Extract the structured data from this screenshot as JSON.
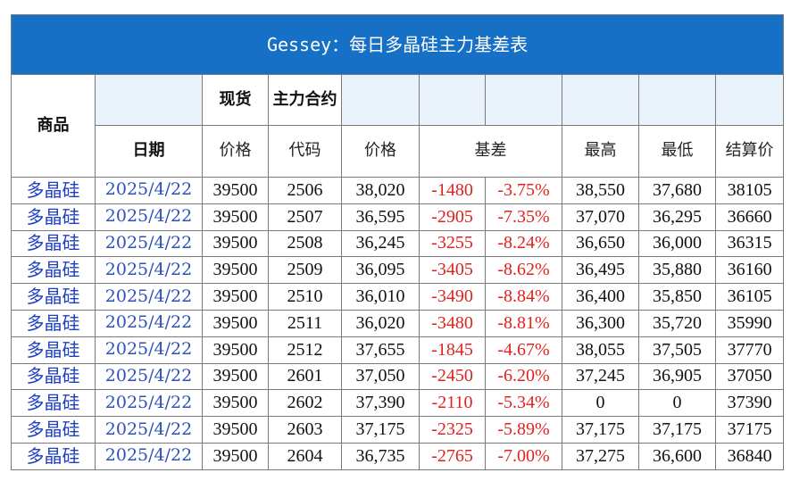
{
  "title": "Gessey：每日多晶硅主力基差表",
  "headers": {
    "product": "商品",
    "spot": "现货",
    "contract": "主力合约",
    "date": "日期",
    "spot_price": "价格",
    "code": "代码",
    "price": "价格",
    "basis": "基差",
    "high": "最高",
    "low": "最低",
    "settle": "结算价"
  },
  "rows": [
    {
      "product": "多晶硅",
      "date": "2025/4/22",
      "spot_price": "39500",
      "code": "2506",
      "price": "38,020",
      "basis": "-1480",
      "basis_pct": "-3.75%",
      "high": "38,550",
      "low": "37,680",
      "settle": "38105"
    },
    {
      "product": "多晶硅",
      "date": "2025/4/22",
      "spot_price": "39500",
      "code": "2507",
      "price": "36,595",
      "basis": "-2905",
      "basis_pct": "-7.35%",
      "high": "37,070",
      "low": "36,295",
      "settle": "36660"
    },
    {
      "product": "多晶硅",
      "date": "2025/4/22",
      "spot_price": "39500",
      "code": "2508",
      "price": "36,245",
      "basis": "-3255",
      "basis_pct": "-8.24%",
      "high": "36,650",
      "low": "36,000",
      "settle": "36315"
    },
    {
      "product": "多晶硅",
      "date": "2025/4/22",
      "spot_price": "39500",
      "code": "2509",
      "price": "36,095",
      "basis": "-3405",
      "basis_pct": "-8.62%",
      "high": "36,495",
      "low": "35,880",
      "settle": "36160"
    },
    {
      "product": "多晶硅",
      "date": "2025/4/22",
      "spot_price": "39500",
      "code": "2510",
      "price": "36,010",
      "basis": "-3490",
      "basis_pct": "-8.84%",
      "high": "36,400",
      "low": "35,850",
      "settle": "36105"
    },
    {
      "product": "多晶硅",
      "date": "2025/4/22",
      "spot_price": "39500",
      "code": "2511",
      "price": "36,020",
      "basis": "-3480",
      "basis_pct": "-8.81%",
      "high": "36,300",
      "low": "35,720",
      "settle": "35990"
    },
    {
      "product": "多晶硅",
      "date": "2025/4/22",
      "spot_price": "39500",
      "code": "2512",
      "price": "37,655",
      "basis": "-1845",
      "basis_pct": "-4.67%",
      "high": "38,055",
      "low": "37,505",
      "settle": "37770"
    },
    {
      "product": "多晶硅",
      "date": "2025/4/22",
      "spot_price": "39500",
      "code": "2601",
      "price": "37,050",
      "basis": "-2450",
      "basis_pct": "-6.20%",
      "high": "37,245",
      "low": "36,905",
      "settle": "37050"
    },
    {
      "product": "多晶硅",
      "date": "2025/4/22",
      "spot_price": "39500",
      "code": "2602",
      "price": "37,390",
      "basis": "-2110",
      "basis_pct": "-5.34%",
      "high": "0",
      "low": "0",
      "settle": "37390"
    },
    {
      "product": "多晶硅",
      "date": "2025/4/22",
      "spot_price": "39500",
      "code": "2603",
      "price": "37,175",
      "basis": "-2325",
      "basis_pct": "-5.89%",
      "high": "37,175",
      "low": "37,175",
      "settle": "37175"
    },
    {
      "product": "多晶硅",
      "date": "2025/4/22",
      "spot_price": "39500",
      "code": "2604",
      "price": "36,735",
      "basis": "-2765",
      "basis_pct": "-7.00%",
      "high": "37,275",
      "low": "36,600",
      "settle": "36840"
    }
  ]
}
